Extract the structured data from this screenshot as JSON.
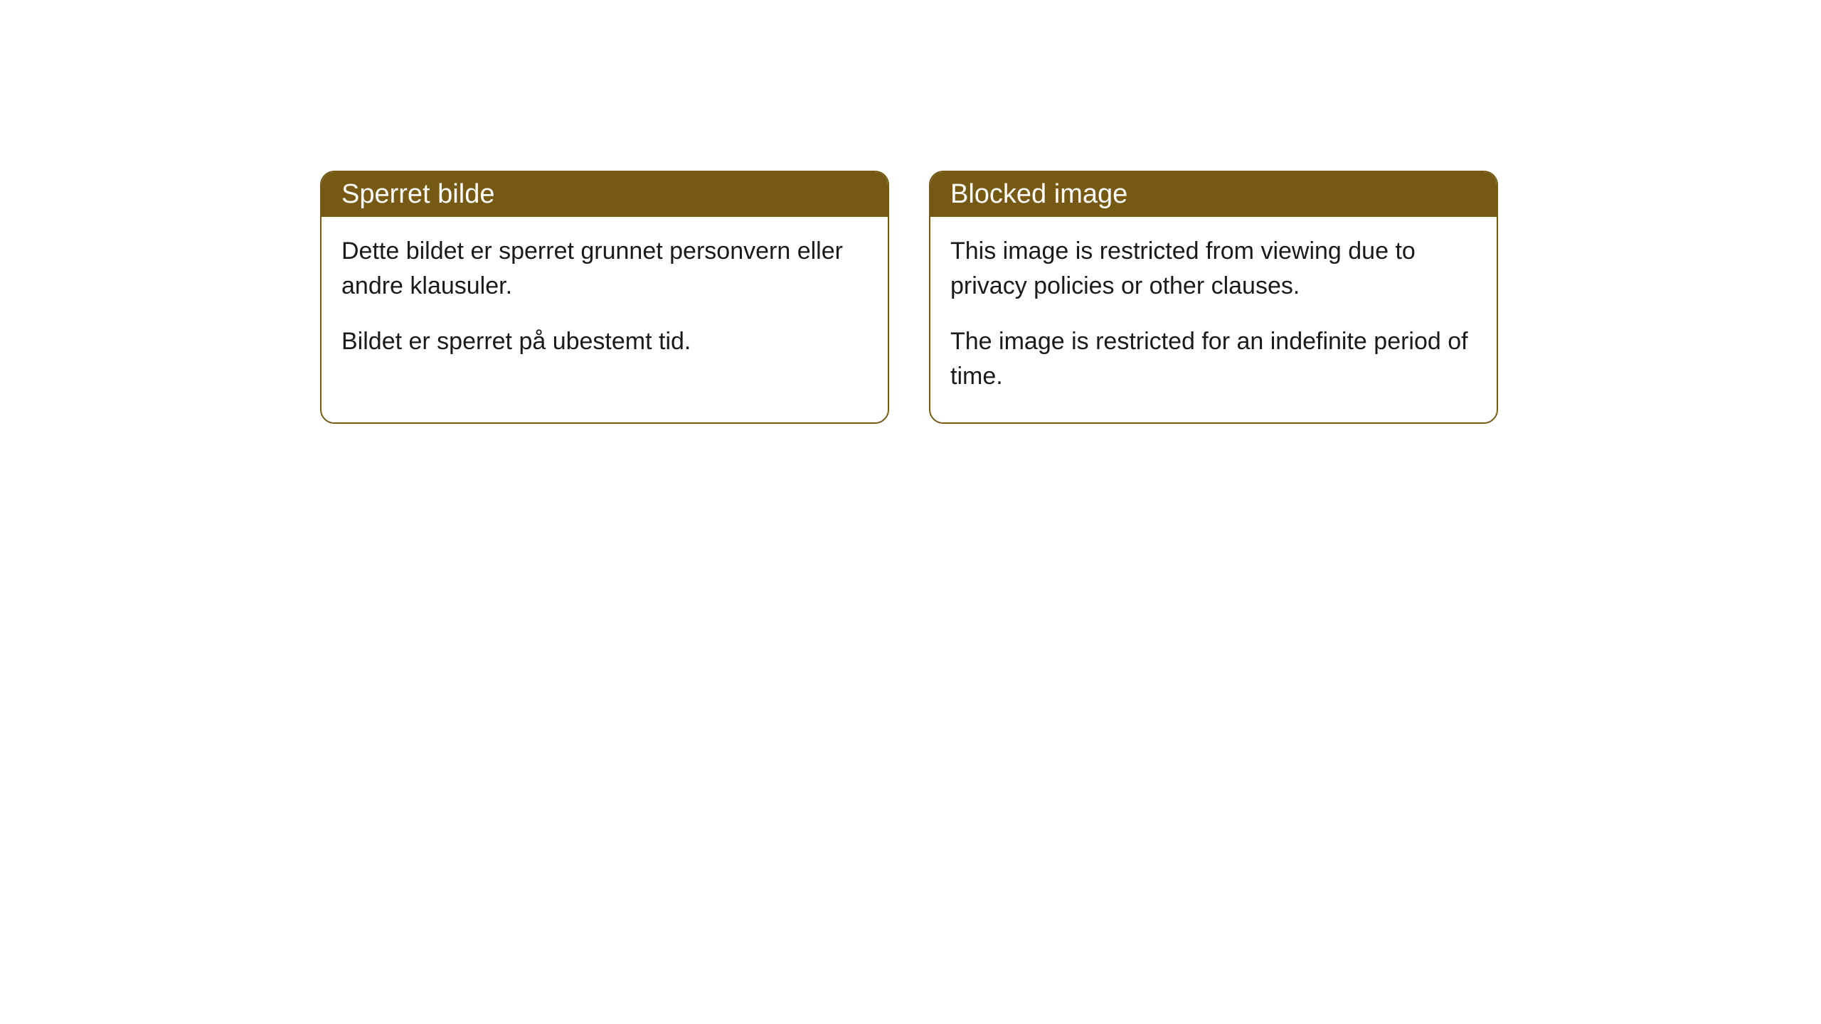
{
  "cards": [
    {
      "title": "Sperret bilde",
      "paragraph1": "Dette bildet er sperret grunnet personvern eller andre klausuler.",
      "paragraph2": "Bildet er sperret på ubestemt tid."
    },
    {
      "title": "Blocked image",
      "paragraph1": "This image is restricted from viewing due to privacy policies or other clauses.",
      "paragraph2": "The image is restricted for an indefinite period of time."
    }
  ],
  "styling": {
    "header_bg_color": "#765a14",
    "header_text_color": "#ffffff",
    "border_color": "#765a14",
    "body_bg_color": "#ffffff",
    "body_text_color": "#1a1a1a",
    "border_radius": 20,
    "header_font_size": 38,
    "body_font_size": 34
  }
}
